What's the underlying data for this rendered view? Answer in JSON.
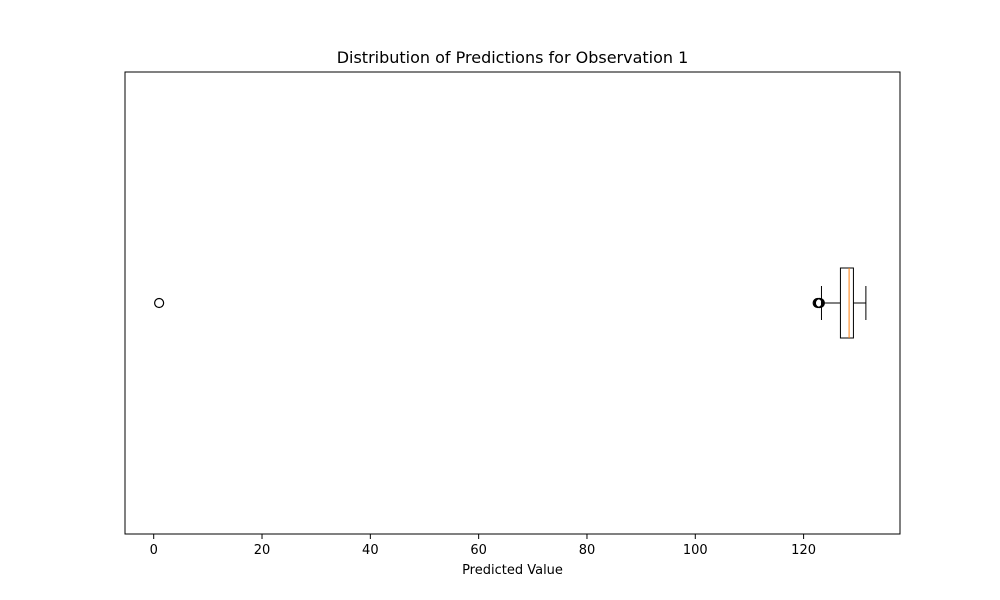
{
  "chart_data": {
    "type": "boxplot",
    "title": "Distribution of Predictions for Observation 1",
    "xlabel": "Predicted Value",
    "ylabel": "",
    "xlim": [
      -5.3,
      137.8
    ],
    "ylim": [
      0.5,
      1.5
    ],
    "xticks": [
      0,
      20,
      40,
      60,
      80,
      100,
      120
    ],
    "xtick_labels": [
      "0",
      "20",
      "40",
      "60",
      "80",
      "100",
      "120"
    ],
    "orientation": "horizontal",
    "grid": false,
    "colors": {
      "box": "#000000",
      "median": "#ff7f0e",
      "axes": "#000000"
    },
    "series": [
      {
        "position": 1,
        "q1": 126.8,
        "median": 128.4,
        "q3": 129.2,
        "whisker_low": 123.3,
        "whisker_high": 131.5,
        "outliers": [
          1.0,
          122.6,
          122.9,
          123.0,
          122.8
        ]
      }
    ]
  }
}
